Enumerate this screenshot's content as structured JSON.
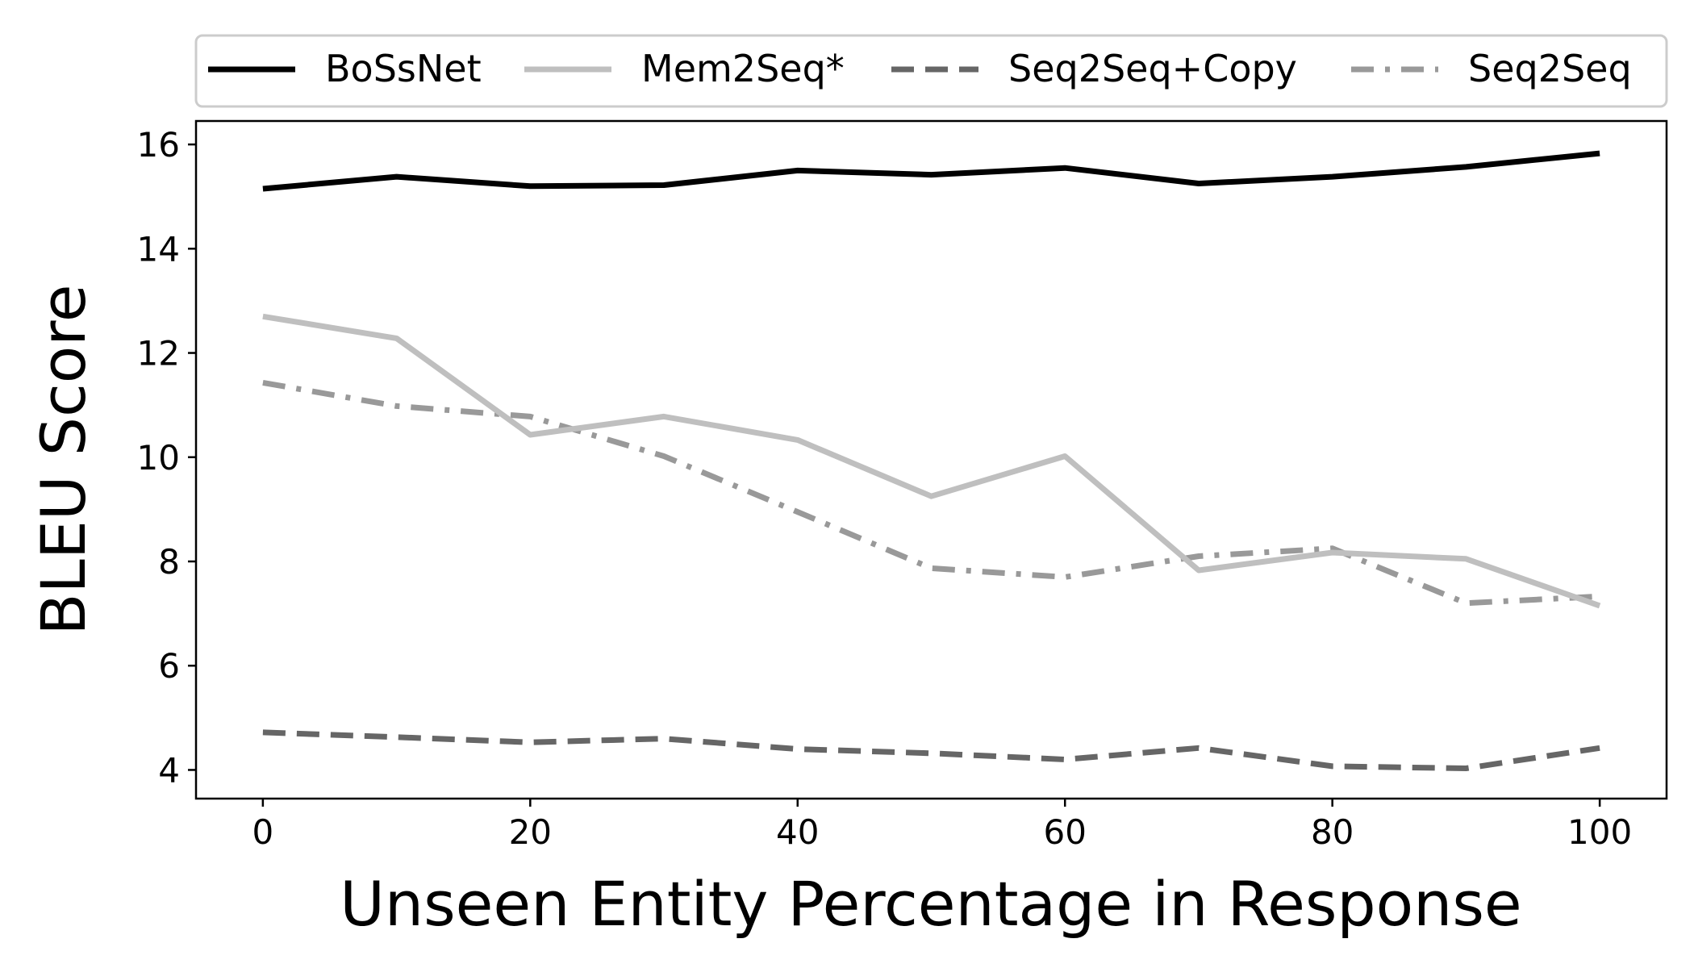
{
  "chart_data": {
    "type": "line",
    "title": "",
    "xlabel": "Unseen Entity Percentage in Response",
    "ylabel": "BLEU Score",
    "xlim": [
      -5,
      105
    ],
    "ylim": [
      3.45,
      16.45
    ],
    "xticks": [
      0,
      20,
      40,
      60,
      80,
      100
    ],
    "yticks": [
      4,
      6,
      8,
      10,
      12,
      14,
      16
    ],
    "grid": false,
    "legend": {
      "placement": "top, above plot",
      "columns": 4
    },
    "x": [
      0,
      10,
      20,
      30,
      40,
      50,
      60,
      70,
      80,
      90,
      100
    ],
    "series": [
      {
        "name": "BoSsNet",
        "color": "#000000",
        "dash": "solid",
        "values": [
          15.15,
          15.38,
          15.2,
          15.22,
          15.5,
          15.42,
          15.55,
          15.25,
          15.38,
          15.57,
          15.83
        ]
      },
      {
        "name": "Mem2Seq*",
        "color": "#bfbfbf",
        "dash": "solid",
        "values": [
          12.7,
          12.28,
          10.43,
          10.78,
          10.33,
          9.25,
          10.02,
          7.83,
          8.17,
          8.05,
          7.15
        ]
      },
      {
        "name": "Seq2Seq+Copy",
        "color": "#666666",
        "dash": "dashed",
        "values": [
          4.72,
          4.63,
          4.53,
          4.6,
          4.4,
          4.32,
          4.2,
          4.42,
          4.07,
          4.03,
          4.42
        ]
      },
      {
        "name": "Seq2Seq",
        "color": "#999999",
        "dash": "dashdot",
        "values": [
          11.43,
          10.98,
          10.78,
          10.02,
          8.95,
          7.87,
          7.7,
          8.1,
          8.25,
          7.2,
          7.33
        ]
      }
    ]
  }
}
